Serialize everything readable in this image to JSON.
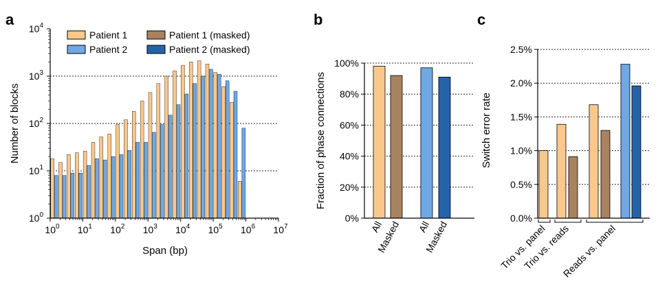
{
  "colors": {
    "patient1": "#FBC88C",
    "patient1_masked": "#A8835F",
    "patient2": "#6FA8E2",
    "patient2_masked": "#2563A8",
    "grid": "#222222"
  },
  "panels": {
    "a": {
      "letter": "a"
    },
    "b": {
      "letter": "b"
    },
    "c": {
      "letter": "c"
    }
  },
  "chart_data": [
    {
      "type": "bar",
      "panel": "a",
      "xlabel": "Span (bp)",
      "ylabel": "Number of blocks",
      "x_scale": "log10",
      "y_scale": "log10",
      "xlim": [
        1,
        10000000
      ],
      "ylim": [
        1,
        10000
      ],
      "x_tick_labels": [
        {
          "base": "10",
          "exp": "0"
        },
        {
          "base": "10",
          "exp": "1"
        },
        {
          "base": "10",
          "exp": "2"
        },
        {
          "base": "10",
          "exp": "3"
        },
        {
          "base": "10",
          "exp": "4"
        },
        {
          "base": "10",
          "exp": "5"
        },
        {
          "base": "10",
          "exp": "6"
        },
        {
          "base": "10",
          "exp": "7"
        }
      ],
      "y_tick_labels": [
        {
          "base": "10",
          "exp": "0"
        },
        {
          "base": "10",
          "exp": "1"
        },
        {
          "base": "10",
          "exp": "2"
        },
        {
          "base": "10",
          "exp": "3"
        },
        {
          "base": "10",
          "exp": "4"
        }
      ],
      "grid": "horizontal dotted at decades",
      "legend_position": "top-left",
      "legend": [
        "Patient 1",
        "Patient 2",
        "Patient 1 (masked)",
        "Patient 2 (masked)"
      ],
      "bin_left_edges_log10": [
        0,
        0.25,
        0.5,
        0.75,
        1,
        1.25,
        1.5,
        1.75,
        2,
        2.25,
        2.5,
        2.75,
        3,
        3.25,
        3.5,
        3.75,
        4,
        4.25,
        4.5,
        4.75,
        5,
        5.25,
        5.5,
        5.75,
        6,
        6.25
      ],
      "series": [
        {
          "name": "Patient 1",
          "color_key": "patient1",
          "values": [
            18,
            15,
            22,
            24,
            26,
            40,
            52,
            60,
            95,
            120,
            180,
            300,
            450,
            700,
            1000,
            1300,
            1700,
            2000,
            2100,
            1800,
            1200,
            600,
            280,
            6,
            null,
            null
          ]
        },
        {
          "name": "Patient 2",
          "color_key": "patient2",
          "values": [
            8,
            8,
            9,
            9,
            13,
            18,
            17,
            20,
            22,
            27,
            40,
            40,
            65,
            95,
            150,
            250,
            420,
            700,
            1000,
            1400,
            1100,
            800,
            480,
            80,
            null,
            null
          ]
        }
      ]
    },
    {
      "type": "bar",
      "panel": "b",
      "ylabel": "Fraction of phase connections",
      "ylim": [
        0,
        100
      ],
      "y_tick_labels": [
        "0%",
        "20%",
        "40%",
        "60%",
        "80%",
        "100%"
      ],
      "grid": "horizontal dotted",
      "categories": [
        "All",
        "Masked",
        "All",
        "Masked"
      ],
      "values": [
        98,
        92,
        97,
        91
      ],
      "color_keys": [
        "patient1",
        "patient1_masked",
        "patient2",
        "patient2_masked"
      ]
    },
    {
      "type": "bar",
      "panel": "c",
      "ylabel": "Switch error rate",
      "ylim": [
        0,
        2.5
      ],
      "y_tick_labels": [
        "0.0%",
        "0.5%",
        "1.0%",
        "1.5%",
        "2.0%",
        "2.5%"
      ],
      "grid": "horizontal dotted",
      "groups": [
        "Trio vs. panel",
        "Trio vs. reads",
        "Reads vs. panel"
      ],
      "bars": [
        {
          "group": 0,
          "value": 1.0,
          "color_key": "patient1"
        },
        {
          "group": 1,
          "value": 1.39,
          "color_key": "patient1"
        },
        {
          "group": 1,
          "value": 0.91,
          "color_key": "patient1_masked"
        },
        {
          "group": 2,
          "value": 1.68,
          "color_key": "patient1"
        },
        {
          "group": 2,
          "value": 1.3,
          "color_key": "patient1_masked"
        },
        {
          "group": 2,
          "value": 2.28,
          "color_key": "patient2"
        },
        {
          "group": 2,
          "value": 1.96,
          "color_key": "patient2_masked"
        }
      ]
    }
  ]
}
